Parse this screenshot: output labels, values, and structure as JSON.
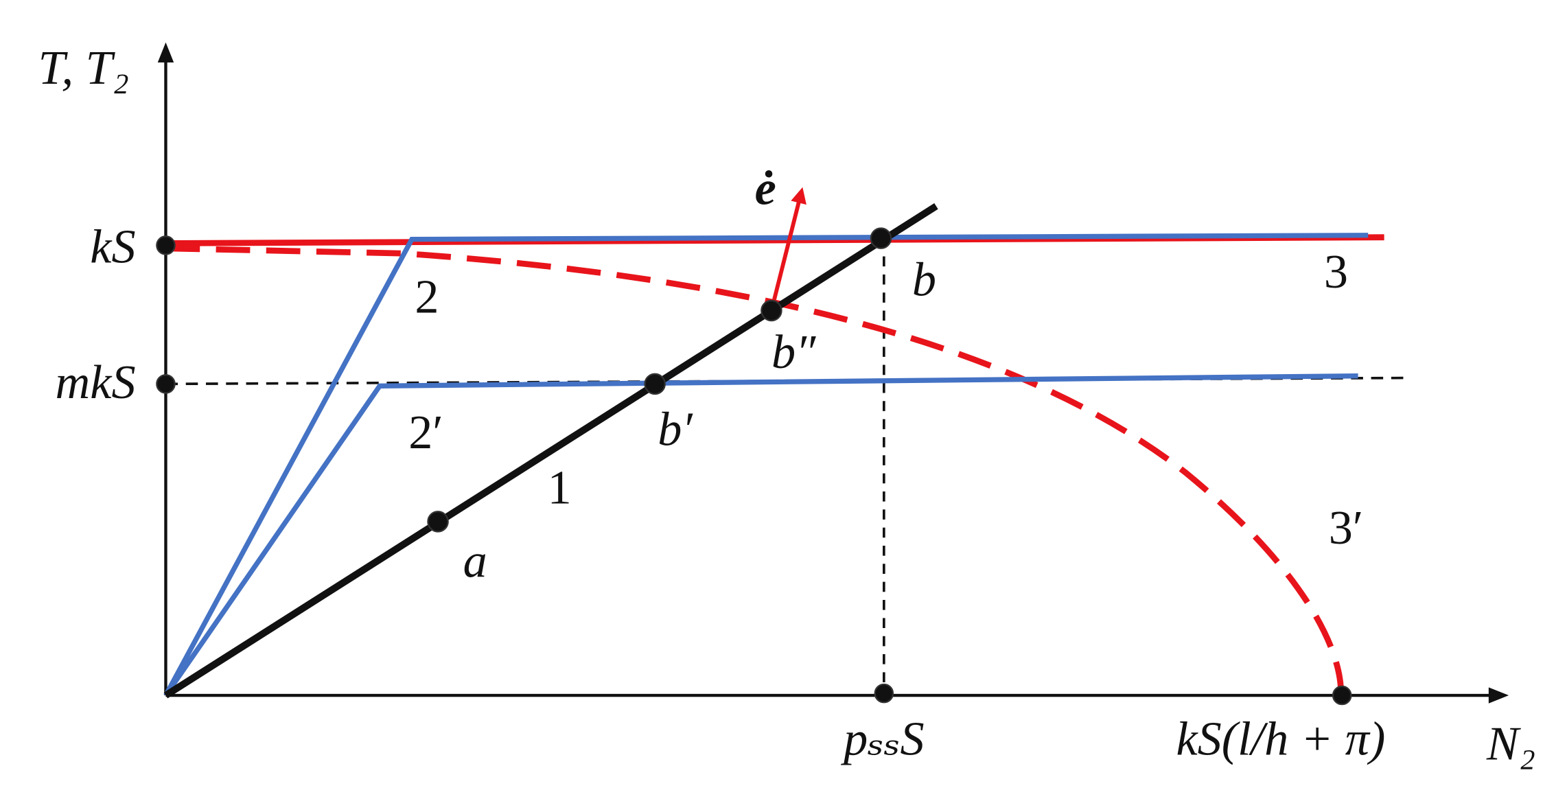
{
  "axes": {
    "y_label": "T, T₂",
    "x_label": "N₂",
    "y_ticks": [
      "kS",
      "mkS"
    ],
    "x_ticks": [
      "pₛₛS",
      "kS(l/h + π)"
    ]
  },
  "points": [
    "a",
    "b′",
    "b″",
    "b"
  ],
  "curves": [
    "1",
    "2",
    "2′",
    "3",
    "3′"
  ],
  "vector": "ė"
}
